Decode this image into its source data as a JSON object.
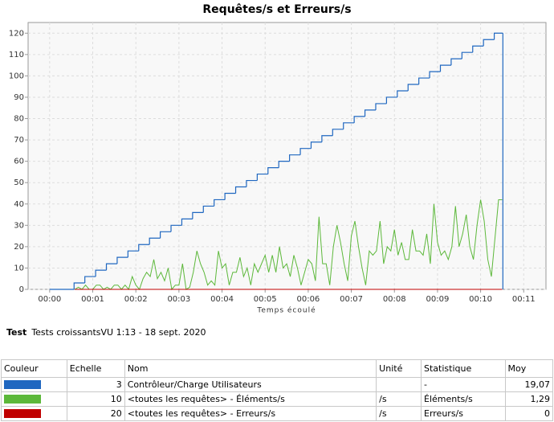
{
  "chart_data": {
    "type": "line",
    "title": "Requêtes/s et Erreurs/s",
    "x_label": "Temps écoulé",
    "xlim": [
      -30,
      691
    ],
    "ylim": [
      0,
      125
    ],
    "grid": true,
    "xticks": [
      {
        "value": 0,
        "label": "00:00"
      },
      {
        "value": 60,
        "label": "00:01"
      },
      {
        "value": 120,
        "label": "00:02"
      },
      {
        "value": 180,
        "label": "00:03"
      },
      {
        "value": 240,
        "label": "00:04"
      },
      {
        "value": 300,
        "label": "00:05"
      },
      {
        "value": 360,
        "label": "00:06"
      },
      {
        "value": 420,
        "label": "00:07"
      },
      {
        "value": 480,
        "label": "00:08"
      },
      {
        "value": 540,
        "label": "00:09"
      },
      {
        "value": 600,
        "label": "00:10"
      },
      {
        "value": 660,
        "label": "00:11"
      }
    ],
    "yticks": [
      0,
      10,
      20,
      30,
      40,
      50,
      60,
      70,
      80,
      90,
      100,
      110,
      120
    ],
    "series": [
      {
        "color": "#1f67c0",
        "step": true,
        "x": [
          0,
          34,
          49,
          64,
          79,
          94,
          109,
          124,
          139,
          154,
          169,
          184,
          199,
          214,
          229,
          244,
          259,
          274,
          289,
          304,
          319,
          334,
          349,
          364,
          379,
          394,
          409,
          424,
          439,
          454,
          469,
          484,
          499,
          514,
          529,
          544,
          559,
          574,
          589,
          604,
          619,
          631
        ],
        "values": [
          0,
          3,
          6,
          9,
          12,
          15,
          18,
          21,
          24,
          27,
          30,
          33,
          36,
          39,
          42,
          45,
          48,
          51,
          54,
          57,
          60,
          63,
          66,
          69,
          72,
          75,
          78,
          81,
          84,
          87,
          90,
          93,
          96,
          99,
          102,
          105,
          108,
          111,
          114,
          117,
          120,
          0
        ]
      },
      {
        "color": "#5cb83a",
        "step": false,
        "x": [
          35,
          40,
          45,
          50,
          55,
          60,
          65,
          70,
          75,
          80,
          85,
          90,
          95,
          100,
          105,
          110,
          115,
          120,
          125,
          130,
          135,
          140,
          145,
          150,
          155,
          160,
          165,
          170,
          175,
          180,
          185,
          190,
          195,
          200,
          205,
          210,
          215,
          220,
          225,
          230,
          235,
          240,
          245,
          250,
          255,
          260,
          265,
          270,
          275,
          280,
          285,
          290,
          295,
          300,
          305,
          310,
          315,
          320,
          325,
          330,
          335,
          340,
          345,
          350,
          355,
          360,
          365,
          370,
          375,
          380,
          385,
          390,
          395,
          400,
          405,
          410,
          415,
          420,
          425,
          430,
          435,
          440,
          445,
          450,
          455,
          460,
          465,
          470,
          475,
          480,
          485,
          490,
          495,
          500,
          505,
          510,
          515,
          520,
          525,
          530,
          535,
          540,
          545,
          550,
          555,
          560,
          565,
          570,
          575,
          580,
          585,
          590,
          595,
          600,
          605,
          610,
          615,
          620,
          625,
          630
        ],
        "values": [
          0,
          1,
          0,
          2,
          0,
          0,
          2,
          2,
          0,
          1,
          0,
          2,
          2,
          0,
          2,
          0,
          6,
          2,
          0,
          5,
          8,
          6,
          14,
          5,
          8,
          4,
          10,
          0,
          2,
          2,
          12,
          0,
          1,
          8,
          18,
          12,
          8,
          2,
          4,
          2,
          18,
          10,
          12,
          2,
          8,
          8,
          15,
          6,
          10,
          2,
          12,
          8,
          12,
          16,
          8,
          16,
          8,
          20,
          10,
          12,
          6,
          16,
          10,
          2,
          8,
          14,
          12,
          4,
          34,
          12,
          12,
          2,
          20,
          30,
          22,
          12,
          4,
          25,
          32,
          20,
          10,
          2,
          18,
          16,
          18,
          32,
          12,
          20,
          18,
          28,
          16,
          22,
          14,
          14,
          28,
          18,
          18,
          16,
          26,
          12,
          40,
          22,
          16,
          18,
          14,
          20,
          39,
          20,
          26,
          35,
          20,
          14,
          30,
          42,
          32,
          14,
          6,
          24,
          42,
          42
        ]
      },
      {
        "color": "#c00000",
        "step": false,
        "x": [
          35,
          630
        ],
        "values": [
          0,
          0
        ]
      }
    ]
  },
  "test": {
    "label": "Test",
    "value": "Tests croissantsVU 1:13 - 18 sept. 2020"
  },
  "table": {
    "headers": [
      "Couleur",
      "Echelle",
      "Nom",
      "Unité",
      "Statistique",
      "Moy"
    ],
    "rows": [
      {
        "scale": 3,
        "name": "Contrôleur/Charge Utilisateurs",
        "statistic": "-",
        "mean": "19,07"
      },
      {
        "scale": 10,
        "name": "<toutes les requêtes> - Éléments/s",
        "unit": "/s",
        "statistic": "Éléments/s",
        "mean": "1,29"
      },
      {
        "scale": 20,
        "name": "<toutes les requêtes> - Erreurs/s",
        "unit": "/s",
        "statistic": "Erreurs/s",
        "mean": 0
      }
    ]
  }
}
